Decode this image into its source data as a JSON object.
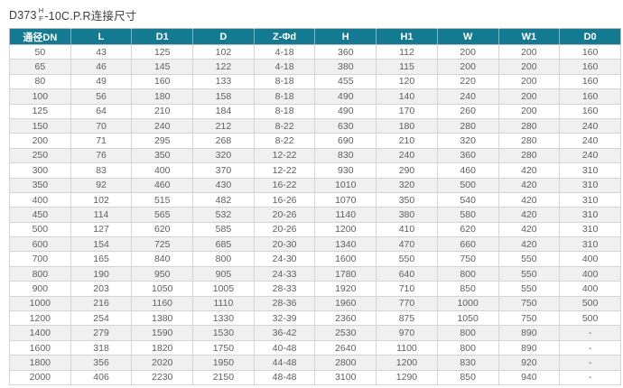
{
  "title": {
    "prefix": "D373",
    "frac_top": "H",
    "frac_bottom": "F",
    "suffix": "-10C.P.R连接尺寸"
  },
  "colors": {
    "header_bg": "#147a92",
    "header_text": "#ffffff",
    "row_alt_bg": "#f0f0f0",
    "border": "#d4d4d4",
    "cell_text": "#5e5e5e"
  },
  "chart_data": {
    "type": "table",
    "title": "D373 H/F -10C.P.R连接尺寸",
    "columns": [
      "通径DN",
      "L",
      "D1",
      "D",
      "Z-Φd",
      "H",
      "H1",
      "W",
      "W1",
      "D0"
    ],
    "rows": [
      [
        "50",
        "43",
        "125",
        "102",
        "4-18",
        "360",
        "112",
        "200",
        "200",
        "160"
      ],
      [
        "65",
        "46",
        "145",
        "122",
        "4-18",
        "380",
        "115",
        "200",
        "200",
        "160"
      ],
      [
        "80",
        "49",
        "160",
        "133",
        "8-18",
        "455",
        "120",
        "220",
        "200",
        "160"
      ],
      [
        "100",
        "56",
        "180",
        "158",
        "8-18",
        "490",
        "140",
        "240",
        "200",
        "160"
      ],
      [
        "125",
        "64",
        "210",
        "184",
        "8-18",
        "490",
        "170",
        "260",
        "200",
        "160"
      ],
      [
        "150",
        "70",
        "240",
        "212",
        "8-22",
        "630",
        "180",
        "280",
        "280",
        "240"
      ],
      [
        "200",
        "71",
        "295",
        "268",
        "8-22",
        "690",
        "210",
        "320",
        "280",
        "240"
      ],
      [
        "250",
        "76",
        "350",
        "320",
        "12-22",
        "830",
        "240",
        "360",
        "280",
        "240"
      ],
      [
        "300",
        "83",
        "400",
        "370",
        "12-22",
        "930",
        "290",
        "460",
        "420",
        "310"
      ],
      [
        "350",
        "92",
        "460",
        "430",
        "16-22",
        "1010",
        "320",
        "500",
        "420",
        "310"
      ],
      [
        "400",
        "102",
        "515",
        "482",
        "16-26",
        "1070",
        "350",
        "540",
        "420",
        "310"
      ],
      [
        "450",
        "114",
        "565",
        "532",
        "20-26",
        "1140",
        "380",
        "580",
        "420",
        "310"
      ],
      [
        "500",
        "127",
        "620",
        "585",
        "20-26",
        "1200",
        "410",
        "620",
        "420",
        "310"
      ],
      [
        "600",
        "154",
        "725",
        "685",
        "20-30",
        "1340",
        "470",
        "660",
        "420",
        "310"
      ],
      [
        "700",
        "165",
        "840",
        "800",
        "24-30",
        "1600",
        "550",
        "750",
        "550",
        "400"
      ],
      [
        "800",
        "190",
        "950",
        "905",
        "24-33",
        "1780",
        "640",
        "800",
        "550",
        "400"
      ],
      [
        "900",
        "203",
        "1050",
        "1005",
        "28-33",
        "1920",
        "710",
        "850",
        "550",
        "400"
      ],
      [
        "1000",
        "216",
        "1160",
        "1110",
        "28-36",
        "1960",
        "770",
        "1000",
        "750",
        "500"
      ],
      [
        "1200",
        "254",
        "1380",
        "1330",
        "32-39",
        "2360",
        "875",
        "1050",
        "750",
        "500"
      ],
      [
        "1400",
        "279",
        "1590",
        "1530",
        "36-42",
        "2530",
        "970",
        "800",
        "890",
        "-"
      ],
      [
        "1600",
        "318",
        "1820",
        "1750",
        "40-48",
        "2640",
        "1100",
        "800",
        "890",
        "-"
      ],
      [
        "1800",
        "356",
        "2020",
        "1950",
        "44-48",
        "2800",
        "1200",
        "830",
        "920",
        "-"
      ],
      [
        "2000",
        "406",
        "2230",
        "2150",
        "48-48",
        "3100",
        "1290",
        "850",
        "940",
        "-"
      ]
    ]
  }
}
